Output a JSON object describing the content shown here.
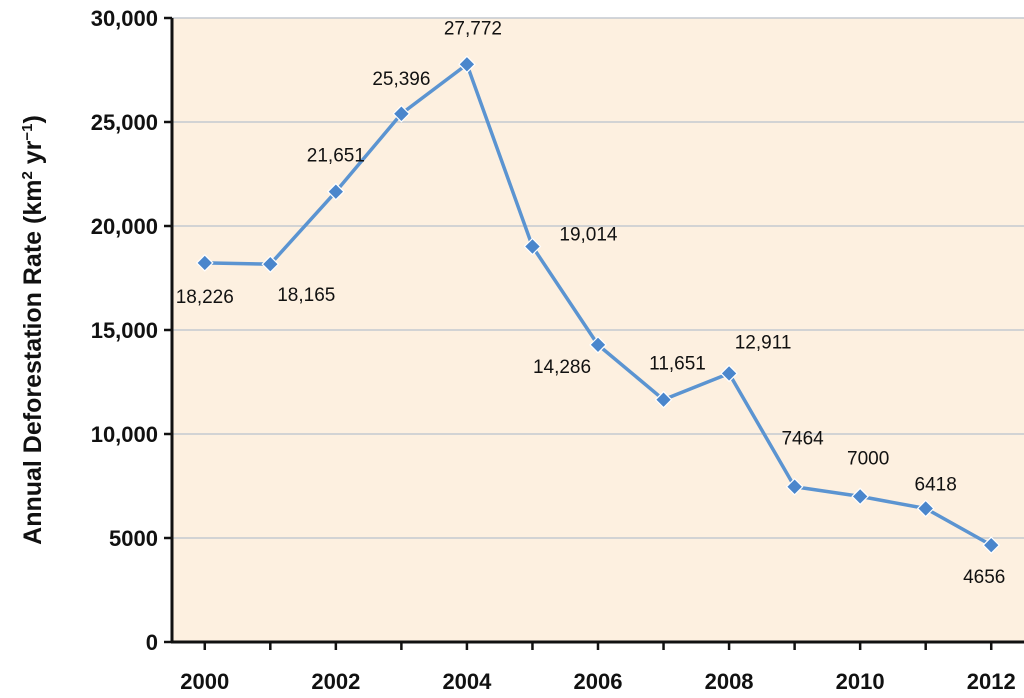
{
  "chart_data": {
    "type": "line",
    "title": "",
    "xlabel": "",
    "ylabel": "Annual Deforestation Rate (km² yr⁻¹)",
    "ylabel_parts": {
      "base": "Annual Deforestation Rate (km",
      "sup1": "2",
      "mid": " yr",
      "sup2": "−1",
      "end": ")"
    },
    "x": [
      2000,
      2001,
      2002,
      2003,
      2004,
      2005,
      2006,
      2007,
      2008,
      2009,
      2010,
      2011,
      2012
    ],
    "series": [
      {
        "values": [
          18226,
          18165,
          21651,
          25396,
          27772,
          19014,
          14286,
          11651,
          12911,
          7464,
          7000,
          6418,
          4656
        ]
      }
    ],
    "data_labels": [
      "18,226",
      "18,165",
      "21,651",
      "25,396",
      "27,772",
      "19,014",
      "14,286",
      "11,651",
      "12,911",
      "7464",
      "7000",
      "6418",
      "4656"
    ],
    "x_tick_labels": [
      "2000",
      "2002",
      "2004",
      "2006",
      "2008",
      "2010",
      "2012"
    ],
    "y_tick_labels": [
      "0",
      "5000",
      "10,000",
      "15,000",
      "20,000",
      "25,000",
      "30,000"
    ],
    "y_ticks": [
      0,
      5000,
      10000,
      15000,
      20000,
      25000,
      30000
    ],
    "xlim": [
      1999.5,
      2012.5
    ],
    "ylim": [
      0,
      30000
    ],
    "grid": "horizontal",
    "legend": "none",
    "colors": {
      "plot_background": "#fdf0e0",
      "gridline": "#c3c9d0",
      "line": "#5b94d1",
      "marker": "#4a86cc",
      "axis": "#111111"
    }
  }
}
